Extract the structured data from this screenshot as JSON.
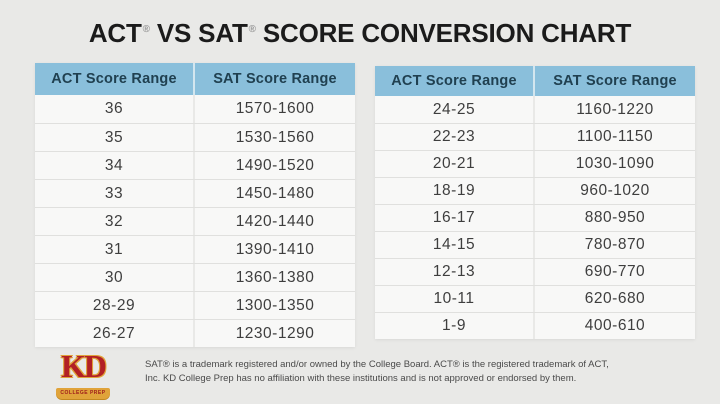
{
  "title": {
    "word1": "ACT",
    "reg": "®",
    "word2": "VS SAT",
    "word3": "SCORE CONVERSION CHART"
  },
  "chart_data": [
    {
      "type": "table",
      "title": "ACT vs SAT conversion (upper scores)",
      "columns": [
        "ACT Score Range",
        "SAT Score Range"
      ],
      "rows": [
        [
          "36",
          "1570-1600"
        ],
        [
          "35",
          "1530-1560"
        ],
        [
          "34",
          "1490-1520"
        ],
        [
          "33",
          "1450-1480"
        ],
        [
          "32",
          "1420-1440"
        ],
        [
          "31",
          "1390-1410"
        ],
        [
          "30",
          "1360-1380"
        ],
        [
          "28-29",
          "1300-1350"
        ],
        [
          "26-27",
          "1230-1290"
        ]
      ]
    },
    {
      "type": "table",
      "title": "ACT vs SAT conversion (lower scores)",
      "columns": [
        "ACT Score Range",
        "SAT Score Range"
      ],
      "rows": [
        [
          "24-25",
          "1160-1220"
        ],
        [
          "22-23",
          "1100-1150"
        ],
        [
          "20-21",
          "1030-1090"
        ],
        [
          "18-19",
          "960-1020"
        ],
        [
          "16-17",
          "880-950"
        ],
        [
          "14-15",
          "780-870"
        ],
        [
          "12-13",
          "690-770"
        ],
        [
          "10-11",
          "620-680"
        ],
        [
          "1-9",
          "400-610"
        ]
      ]
    }
  ],
  "footer": {
    "logo_text": "KD",
    "logo_banner": "COLLEGE PREP",
    "disclaimer_line1": "SAT® is a trademark registered and/or owned by the College Board. ACT® is the registered trademark of ACT,",
    "disclaimer_line2": "Inc. KD College Prep has no affiliation with these institutions and is not approved or endorsed by them."
  },
  "colors": {
    "page_bg": "#e9e9e7",
    "table_bg": "#f8f8f7",
    "header_bg": "#8abfdb",
    "header_text": "#204050",
    "cell_text": "#3e3e3e",
    "title_text": "#1b1b1b",
    "logo_red": "#b22025",
    "logo_gold": "#e0a33a"
  }
}
